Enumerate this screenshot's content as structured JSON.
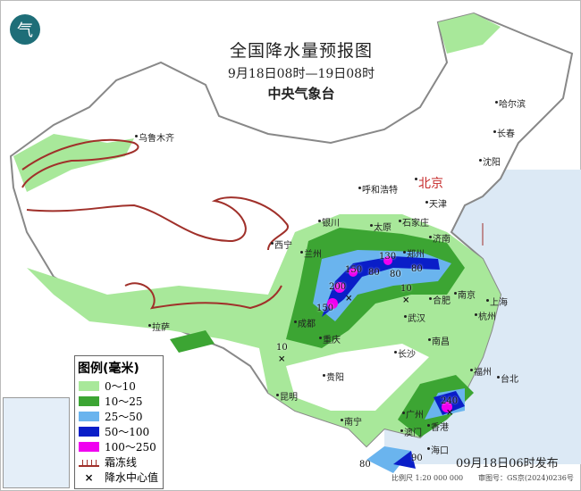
{
  "header": {
    "title": "全国降水量预报图",
    "period": "9月18日08时—19日08时",
    "issuer": "中央气象台",
    "logo_icon": "weather-logo-icon"
  },
  "legend": {
    "title": "图例(毫米)",
    "items": [
      {
        "label": "0～10",
        "color": "#a8e89a"
      },
      {
        "label": "10～25",
        "color": "#3ca533"
      },
      {
        "label": "25～50",
        "color": "#6ab4ee"
      },
      {
        "label": "50～100",
        "color": "#0a1ec8"
      },
      {
        "label": "100～250",
        "color": "#f000f0"
      }
    ],
    "frost_line": "霜冻线",
    "center_mark": "降水中心值"
  },
  "cities": [
    {
      "name": "乌鲁木齐"
    },
    {
      "name": "呼和浩特"
    },
    {
      "name": "北京"
    },
    {
      "name": "天津"
    },
    {
      "name": "哈尔滨"
    },
    {
      "name": "长春"
    },
    {
      "name": "沈阳"
    },
    {
      "name": "银川"
    },
    {
      "name": "太原"
    },
    {
      "name": "石家庄"
    },
    {
      "name": "济南"
    },
    {
      "name": "西宁"
    },
    {
      "name": "兰州"
    },
    {
      "name": "郑州"
    },
    {
      "name": "合肥"
    },
    {
      "name": "南京"
    },
    {
      "name": "上海"
    },
    {
      "name": "成都"
    },
    {
      "name": "武汉"
    },
    {
      "name": "杭州"
    },
    {
      "name": "重庆"
    },
    {
      "name": "拉萨"
    },
    {
      "name": "长沙"
    },
    {
      "name": "南昌"
    },
    {
      "name": "福州"
    },
    {
      "name": "台北"
    },
    {
      "name": "贵阳"
    },
    {
      "name": "昆明"
    },
    {
      "name": "南宁"
    },
    {
      "name": "广州"
    },
    {
      "name": "香港"
    },
    {
      "name": "澳门"
    },
    {
      "name": "海口"
    }
  ],
  "rain_centers": [
    "150",
    "200",
    "150",
    "130",
    "80",
    "80",
    "80",
    "10",
    "10",
    "240",
    "90",
    "80"
  ],
  "footer": {
    "published": "09月18日06时发布",
    "scale": "比例尺 1:20 000 000",
    "review_no": "审图号：GS京(2024)0236号"
  }
}
